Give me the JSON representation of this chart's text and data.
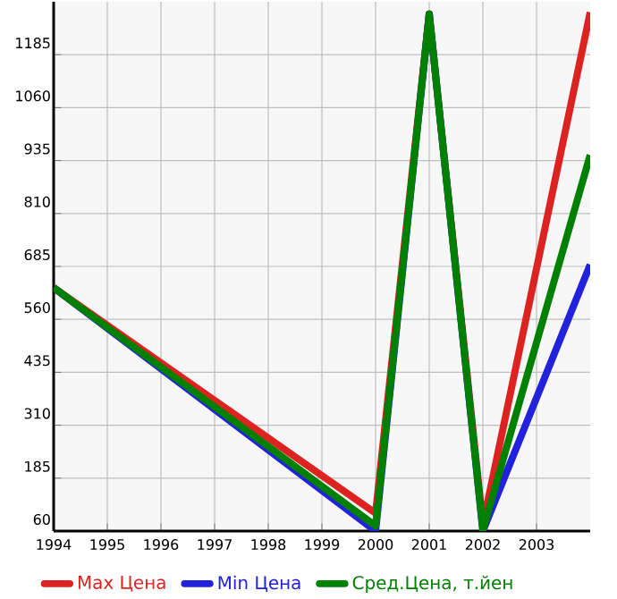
{
  "chart_data": {
    "type": "line",
    "x": [
      1994,
      2000,
      2001,
      2002,
      2004
    ],
    "xlim": [
      1994,
      2004
    ],
    "xticks": [
      1994,
      1995,
      1996,
      1997,
      1998,
      1999,
      2000,
      2001,
      2002,
      2003
    ],
    "ylim": [
      60,
      1310
    ],
    "yticks": [
      60,
      185,
      310,
      435,
      560,
      685,
      810,
      935,
      1060,
      1185
    ],
    "grid": true,
    "legend": "bottom",
    "marker": "none",
    "line_style": "solid",
    "series": [
      {
        "name": "Max Цена",
        "color": "#dd2222",
        "values": [
          635,
          102,
          1281,
          75,
          1285
        ]
      },
      {
        "name": "Min Цена",
        "color": "#2222dd",
        "values": [
          635,
          60,
          1281,
          60,
          689
        ]
      },
      {
        "name": "Сред.Цена, т.йен",
        "color": "#008000",
        "values": [
          635,
          72,
          1281,
          62,
          948
        ]
      }
    ]
  }
}
